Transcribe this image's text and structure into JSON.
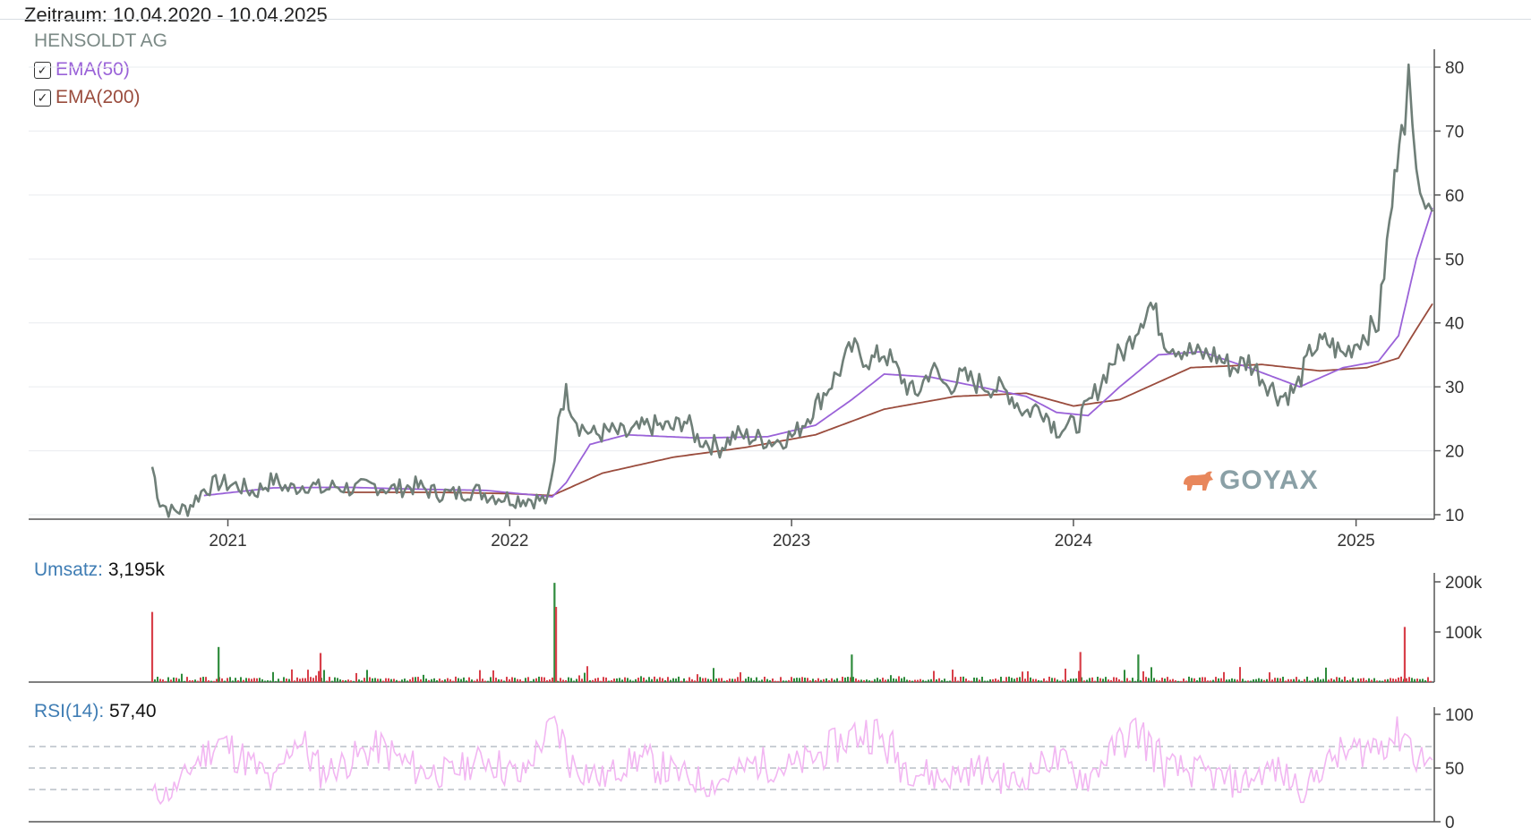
{
  "header": {
    "range_label": "Zeitraum: 10.04.2020 - 10.04.2025",
    "instrument": "HENSOLDT AG"
  },
  "legend": [
    {
      "label": "EMA(50)",
      "checked": true,
      "color": "#9a62d8"
    },
    {
      "label": "EMA(200)",
      "checked": true,
      "color": "#9a4c3d"
    }
  ],
  "volume_panel": {
    "label": "Umsatz:",
    "value": "3,195k"
  },
  "rsi_panel": {
    "label": "RSI(14):",
    "value": "57,40"
  },
  "watermark": {
    "text": "GOYAX",
    "icon": "bull-icon",
    "color": "#e8875c"
  },
  "colors": {
    "price": "#6f7f78",
    "ema50": "#9a62d8",
    "ema200": "#9a4c3d",
    "vol_up": "#2e8b3c",
    "vol_down": "#d8404a",
    "rsi": "#f2b6f2",
    "rsi_hot": "#c71fc7"
  },
  "chart_data": [
    {
      "type": "line",
      "x_type": "date",
      "x_ticks": [
        "2021",
        "2022",
        "2023",
        "2024",
        "2025"
      ],
      "ylim": [
        10,
        80
      ],
      "y_ticks": [
        10,
        20,
        30,
        40,
        50,
        60,
        70,
        80
      ],
      "grid": true,
      "series": [
        {
          "name": "HENSOLDT AG",
          "x": [
            "2020-09-25",
            "2020-10-05",
            "2020-10-20",
            "2020-11-10",
            "2020-12-01",
            "2020-12-20",
            "2021-01-15",
            "2021-02-05",
            "2021-03-01",
            "2021-03-20",
            "2021-04-15",
            "2021-05-05",
            "2021-05-20",
            "2021-06-15",
            "2021-07-10",
            "2021-08-01",
            "2021-09-01",
            "2021-09-25",
            "2021-10-20",
            "2021-11-15",
            "2021-12-10",
            "2022-01-05",
            "2022-01-25",
            "2022-02-20",
            "2022-02-28",
            "2022-03-05",
            "2022-03-15",
            "2022-04-01",
            "2022-04-20",
            "2022-05-10",
            "2022-06-01",
            "2022-07-01",
            "2022-08-01",
            "2022-08-15",
            "2022-09-01",
            "2022-09-30",
            "2022-10-20",
            "2022-11-15",
            "2022-12-10",
            "2023-01-05",
            "2023-02-01",
            "2023-03-01",
            "2023-03-20",
            "2023-04-15",
            "2023-05-01",
            "2023-05-20",
            "2023-06-10",
            "2023-07-01",
            "2023-07-20",
            "2023-08-10",
            "2023-09-01",
            "2023-09-20",
            "2023-10-10",
            "2023-10-30",
            "2023-11-20",
            "2023-12-10",
            "2024-01-05",
            "2024-01-25",
            "2024-02-20",
            "2024-03-10",
            "2024-03-25",
            "2024-04-10",
            "2024-05-01",
            "2024-05-20",
            "2024-06-10",
            "2024-07-01",
            "2024-07-25",
            "2024-08-15",
            "2024-09-05",
            "2024-09-25",
            "2024-10-15",
            "2024-11-05",
            "2024-11-25",
            "2024-12-15",
            "2025-01-10",
            "2025-01-30",
            "2025-02-10",
            "2025-02-20",
            "2025-03-01",
            "2025-03-05",
            "2025-03-10",
            "2025-03-15",
            "2025-03-20",
            "2025-03-25",
            "2025-04-01",
            "2025-04-05",
            "2025-04-10"
          ],
          "values": [
            17.5,
            12,
            10.5,
            11,
            14,
            15,
            14.5,
            13.5,
            15.5,
            14,
            14.8,
            13.8,
            14.5,
            14,
            14.6,
            14,
            14.5,
            13.5,
            13.2,
            13.8,
            13,
            12.5,
            12.5,
            12.2,
            18,
            26,
            29,
            24,
            22.5,
            23,
            22.5,
            24,
            23.5,
            25,
            22,
            20.5,
            22.5,
            22,
            21.5,
            22.5,
            27,
            32,
            36,
            34,
            35.5,
            32,
            28.5,
            33,
            30,
            31.5,
            30.5,
            30,
            29,
            26,
            27,
            23.5,
            24,
            28,
            34,
            36,
            40,
            43,
            37,
            36,
            35,
            35,
            33,
            34,
            31,
            28.5,
            29.5,
            36,
            37,
            35,
            38,
            40,
            52,
            62,
            74,
            68,
            78,
            70,
            67,
            63,
            59,
            56,
            57.4
          ]
        },
        {
          "name": "EMA(50)",
          "x": [
            "2020-12-01",
            "2021-03-01",
            "2021-06-01",
            "2021-09-01",
            "2021-12-01",
            "2022-02-25",
            "2022-03-15",
            "2022-04-15",
            "2022-06-01",
            "2022-09-01",
            "2022-12-01",
            "2023-02-01",
            "2023-03-20",
            "2023-05-01",
            "2023-07-01",
            "2023-09-01",
            "2023-11-01",
            "2023-12-10",
            "2024-01-20",
            "2024-03-01",
            "2024-04-20",
            "2024-06-15",
            "2024-08-15",
            "2024-10-20",
            "2024-12-15",
            "2025-01-30",
            "2025-02-25",
            "2025-03-20",
            "2025-04-10"
          ],
          "values": [
            13,
            14.2,
            14.3,
            14,
            13.8,
            12.8,
            15,
            21,
            22.5,
            22,
            22.2,
            24,
            28,
            32,
            31.5,
            30,
            28.5,
            26,
            25.5,
            30,
            35,
            35.5,
            33,
            30,
            33,
            34,
            38,
            50,
            58
          ]
        },
        {
          "name": "EMA(200)",
          "x": [
            "2021-06-01",
            "2021-10-01",
            "2022-01-01",
            "2022-02-25",
            "2022-05-01",
            "2022-08-01",
            "2022-11-01",
            "2023-02-01",
            "2023-05-01",
            "2023-08-01",
            "2023-11-01",
            "2024-01-01",
            "2024-03-01",
            "2024-06-01",
            "2024-09-01",
            "2024-11-15",
            "2025-01-15",
            "2025-02-25",
            "2025-03-20",
            "2025-04-10"
          ],
          "values": [
            13.5,
            13.5,
            13.3,
            13,
            16.5,
            19,
            20.5,
            22.5,
            26.5,
            28.5,
            29,
            27,
            28,
            33,
            33.5,
            32.5,
            33,
            34.5,
            39,
            43
          ]
        }
      ]
    },
    {
      "type": "bar",
      "title": "Umsatz",
      "ylim": [
        0,
        200000
      ],
      "y_ticks": [
        "100k",
        "200k"
      ],
      "spikes": [
        {
          "x": "2020-09-25",
          "value": 140000
        },
        {
          "x": "2020-12-20",
          "value": 70000
        },
        {
          "x": "2021-05-01",
          "value": 58000
        },
        {
          "x": "2022-02-28",
          "value": 198000
        },
        {
          "x": "2022-03-02",
          "value": 150000
        },
        {
          "x": "2023-03-20",
          "value": 55000
        },
        {
          "x": "2024-01-10",
          "value": 60000
        },
        {
          "x": "2024-03-25",
          "value": 55000
        },
        {
          "x": "2025-03-05",
          "value": 110000
        }
      ]
    },
    {
      "type": "line",
      "title": "RSI(14)",
      "ylim": [
        0,
        100
      ],
      "y_ticks": [
        0,
        50,
        100
      ],
      "levels": [
        30,
        50,
        70
      ],
      "series": [
        {
          "name": "RSI(14)",
          "x": [
            "2020-09-25",
            "2020-10-20",
            "2020-11-20",
            "2020-12-20",
            "2021-01-20",
            "2021-03-01",
            "2021-04-01",
            "2021-05-01",
            "2021-06-01",
            "2021-07-15",
            "2021-09-01",
            "2021-10-15",
            "2021-12-01",
            "2022-01-15",
            "2022-02-28",
            "2022-03-20",
            "2022-05-01",
            "2022-06-15",
            "2022-08-01",
            "2022-09-20",
            "2022-11-15",
            "2023-01-01",
            "2023-02-15",
            "2023-03-20",
            "2023-04-15",
            "2023-06-01",
            "2023-07-15",
            "2023-09-01",
            "2023-10-20",
            "2023-12-01",
            "2024-01-20",
            "2024-03-01",
            "2024-03-25",
            "2024-05-01",
            "2024-06-20",
            "2024-08-01",
            "2024-09-15",
            "2024-10-25",
            "2024-12-01",
            "2025-01-20",
            "2025-02-20",
            "2025-03-05",
            "2025-03-20",
            "2025-04-10"
          ],
          "values": [
            25,
            27,
            55,
            75,
            60,
            35,
            80,
            45,
            55,
            70,
            48,
            45,
            60,
            40,
            95,
            55,
            40,
            60,
            45,
            35,
            55,
            50,
            65,
            80,
            85,
            50,
            40,
            50,
            35,
            60,
            40,
            75,
            85,
            50,
            45,
            35,
            50,
            30,
            60,
            70,
            80,
            85,
            60,
            57.4
          ]
        }
      ]
    }
  ]
}
